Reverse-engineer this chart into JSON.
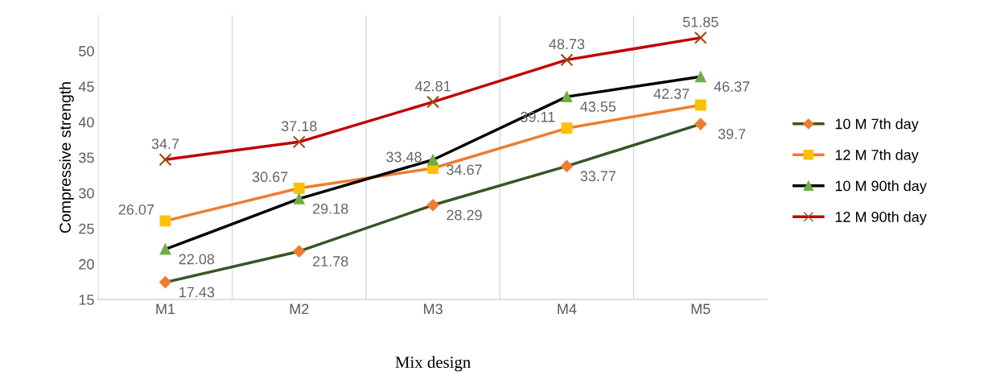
{
  "chart_data": {
    "type": "line",
    "xlabel": "Mix design",
    "ylabel": "Compressive strength",
    "categories": [
      "M1",
      "M2",
      "M3",
      "M4",
      "M5"
    ],
    "series": [
      {
        "name": "10 M 7th day",
        "color": "#375623",
        "colors": [
          "#ed7d31",
          "#ed7d31",
          "#ed7d31",
          "#ed7d31",
          "#ed7d31"
        ],
        "marker": "diamond",
        "values": [
          17.43,
          21.78,
          28.29,
          33.77,
          39.7
        ]
      },
      {
        "name": "12 M 7th day",
        "color": "#ed7d31",
        "colors": [
          "#ffc000",
          "#ffc000",
          "#ffc000",
          "#ffc000",
          "#ffc000"
        ],
        "marker": "square",
        "values": [
          26.07,
          30.67,
          33.48,
          39.11,
          42.37
        ]
      },
      {
        "name": "10 M 90th day",
        "color": "#000000",
        "colors": [
          "#70ad47",
          "#70ad47",
          "#70ad47",
          "#70ad47",
          "#70ad47"
        ],
        "marker": "triangle",
        "values": [
          22.08,
          29.18,
          34.67,
          43.55,
          46.37
        ]
      },
      {
        "name": "12 M 90th day",
        "color": "#c00000",
        "colors": [
          "#9e480e",
          "#9e480e",
          "#9e480e",
          "#9e480e",
          "#9e480e"
        ],
        "marker": "cross",
        "values": [
          34.7,
          37.18,
          42.81,
          48.73,
          51.85
        ]
      }
    ],
    "ylim": [
      15,
      55
    ],
    "yticks": [
      15,
      20,
      25,
      30,
      35,
      40,
      45,
      50
    ],
    "grid": "x",
    "legend": "right",
    "data_labels": true,
    "line_style": "solid"
  }
}
